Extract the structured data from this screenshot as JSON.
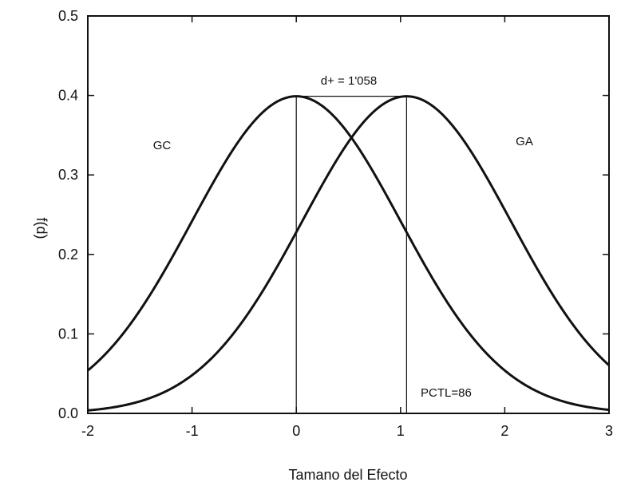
{
  "chart_data": {
    "type": "line",
    "title": "",
    "xlabel": "Tamano del Efecto",
    "ylabel": "f(d)",
    "xlim": [
      -2,
      3
    ],
    "ylim": [
      0,
      0.5
    ],
    "x_ticks": [
      -2,
      -1,
      0,
      1,
      2,
      3
    ],
    "x_tick_labels": [
      "-2",
      "-1",
      "0",
      "1",
      "2",
      "3"
    ],
    "y_ticks": [
      0,
      0.1,
      0.2,
      0.3,
      0.4,
      0.5
    ],
    "y_tick_labels": [
      "0.0",
      "0.1",
      "0.2",
      "0.3",
      "0.4",
      "0.5"
    ],
    "grid": false,
    "series": [
      {
        "name": "GC",
        "distribution": "normal",
        "mean": 0,
        "sd": 1,
        "color": "#111111"
      },
      {
        "name": "GA",
        "distribution": "normal",
        "mean": 1.058,
        "sd": 1,
        "color": "#111111"
      }
    ],
    "annotations": {
      "effect_size_label": "d+ = 1'058",
      "percentile_label": "PCTL=86",
      "gc_label": "GC",
      "ga_label": "GA"
    },
    "reference_lines": [
      {
        "x": 0
      },
      {
        "x": 1.058
      }
    ],
    "bracket": {
      "x1": 0,
      "x2": 1.058,
      "y": 0.399
    }
  }
}
